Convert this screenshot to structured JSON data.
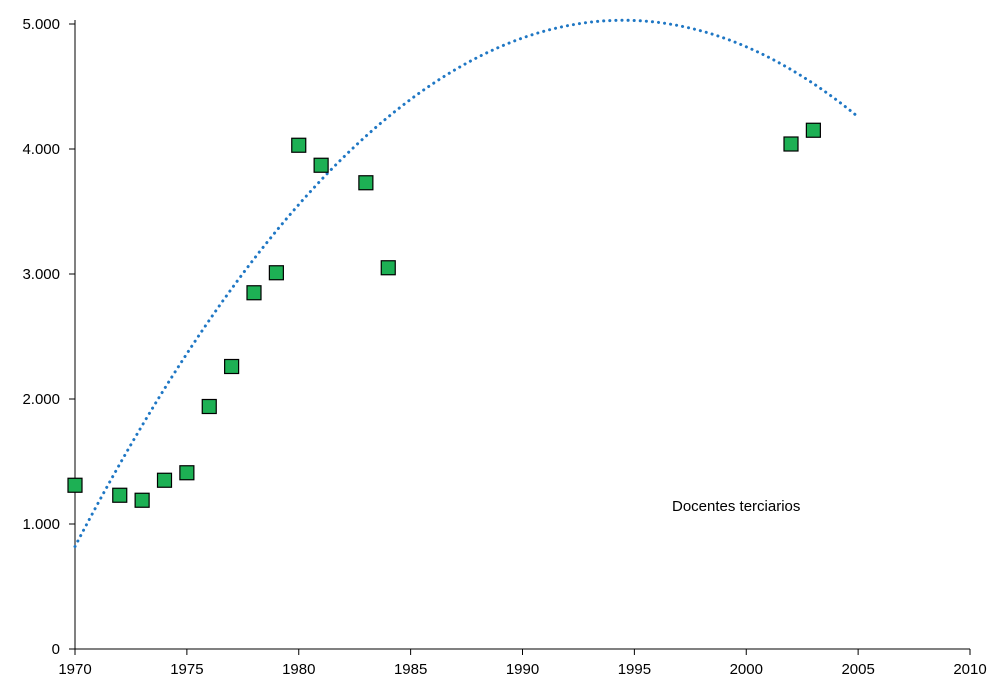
{
  "chart_data": {
    "type": "scatter",
    "title": "",
    "xlabel": "",
    "ylabel": "",
    "xlim": [
      1970,
      2010
    ],
    "ylim": [
      0,
      5000
    ],
    "x_ticks": [
      "1970",
      "1975",
      "1980",
      "1985",
      "1990",
      "1995",
      "2000",
      "2005",
      "2010"
    ],
    "x_tick_values": [
      1970,
      1975,
      1980,
      1985,
      1990,
      1995,
      2000,
      2005,
      2010
    ],
    "y_ticks": [
      "0",
      "1.000",
      "2.000",
      "3.000",
      "4.000",
      "5.000"
    ],
    "y_tick_values": [
      0,
      1000,
      2000,
      3000,
      4000,
      5000
    ],
    "grid": false,
    "annotation": "Docentes terciarios",
    "series": [
      {
        "marker": "square",
        "color": "#1db054",
        "points": [
          {
            "x": 1970,
            "y": 1310
          },
          {
            "x": 1972,
            "y": 1230
          },
          {
            "x": 1973,
            "y": 1190
          },
          {
            "x": 1974,
            "y": 1350
          },
          {
            "x": 1975,
            "y": 1410
          },
          {
            "x": 1976,
            "y": 1940
          },
          {
            "x": 1977,
            "y": 2260
          },
          {
            "x": 1978,
            "y": 2850
          },
          {
            "x": 1979,
            "y": 3010
          },
          {
            "x": 1980,
            "y": 4030
          },
          {
            "x": 1981,
            "y": 3870
          },
          {
            "x": 1983,
            "y": 3730
          },
          {
            "x": 1984,
            "y": 3050
          },
          {
            "x": 2002,
            "y": 4040
          },
          {
            "x": 2003,
            "y": 4150
          }
        ]
      }
    ],
    "trendline": {
      "style": "dotted",
      "color": "#1f77c4",
      "x_range": [
        1970,
        2005
      ],
      "vertex": {
        "x": 1994.5,
        "y": 5030
      },
      "start_value": 820
    }
  }
}
